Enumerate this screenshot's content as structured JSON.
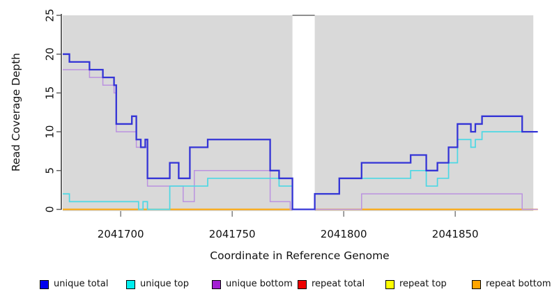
{
  "chart_data": {
    "type": "line",
    "subtype": "step-post",
    "title": "",
    "xlabel": "Coordinate in Reference Genome",
    "ylabel": "Read Coverage Depth",
    "xlim": [
      2041674,
      2041887
    ],
    "ylim": [
      0,
      25
    ],
    "x_ticks": [
      2041700,
      2041750,
      2041800,
      2041850
    ],
    "y_ticks": [
      0,
      5,
      10,
      15,
      20,
      25
    ],
    "grid": false,
    "plot_bg": "#ffffff",
    "shaded_regions": [
      {
        "from": 2041674,
        "to": 2041777,
        "color": "#d9d9d9"
      },
      {
        "from": 2041787,
        "to": 2041885,
        "color": "#d9d9d9"
      }
    ],
    "gap_region": {
      "from": 2041777,
      "to": 2041787,
      "top_line_color": "#8f8f8f"
    },
    "series": [
      {
        "name": "repeat top",
        "color": "#ffff00",
        "width": 1.5,
        "points": [
          [
            2041674,
            0
          ]
        ]
      },
      {
        "name": "repeat total",
        "color": "#dd2222",
        "width": 1.5,
        "points": [
          [
            2041674,
            0
          ]
        ]
      },
      {
        "name": "repeat bottom",
        "color": "#ffa500",
        "width": 2,
        "points": [
          [
            2041674,
            0
          ]
        ]
      },
      {
        "name": "unique bottom",
        "color": "#bb92e0",
        "width": 1.5,
        "points": [
          [
            2041674,
            18
          ],
          [
            2041686,
            17
          ],
          [
            2041692,
            16
          ],
          [
            2041697,
            15
          ],
          [
            2041698,
            10
          ],
          [
            2041707,
            8
          ],
          [
            2041712,
            3
          ],
          [
            2041728,
            1
          ],
          [
            2041733,
            5
          ],
          [
            2041767,
            1
          ],
          [
            2041776,
            0
          ],
          [
            2041808,
            2
          ],
          [
            2041880,
            0
          ]
        ]
      },
      {
        "name": "unique top",
        "color": "#4cd8e4",
        "width": 1.7,
        "points": [
          [
            2041674,
            2
          ],
          [
            2041677,
            1
          ],
          [
            2041708,
            0
          ],
          [
            2041710,
            1
          ],
          [
            2041712,
            0
          ],
          [
            2041722,
            3
          ],
          [
            2041739,
            4
          ],
          [
            2041771,
            3
          ],
          [
            2041777,
            0
          ],
          [
            2041787,
            2
          ],
          [
            2041798,
            4
          ],
          [
            2041830,
            5
          ],
          [
            2041837,
            3
          ],
          [
            2041842,
            4
          ],
          [
            2041847,
            6
          ],
          [
            2041851,
            9
          ],
          [
            2041857,
            8
          ],
          [
            2041859,
            9
          ],
          [
            2041862,
            10
          ]
        ]
      },
      {
        "name": "unique total",
        "color": "#3434d6",
        "width": 2.3,
        "points": [
          [
            2041674,
            20
          ],
          [
            2041677,
            19
          ],
          [
            2041686,
            18
          ],
          [
            2041692,
            17
          ],
          [
            2041697,
            16
          ],
          [
            2041698,
            11
          ],
          [
            2041705,
            12
          ],
          [
            2041707,
            9
          ],
          [
            2041709,
            8
          ],
          [
            2041711,
            9
          ],
          [
            2041712,
            4
          ],
          [
            2041722,
            6
          ],
          [
            2041726,
            4
          ],
          [
            2041731,
            8
          ],
          [
            2041739,
            9
          ],
          [
            2041767,
            5
          ],
          [
            2041771,
            4
          ],
          [
            2041777,
            0
          ],
          [
            2041787,
            2
          ],
          [
            2041798,
            4
          ],
          [
            2041808,
            6
          ],
          [
            2041830,
            7
          ],
          [
            2041837,
            5
          ],
          [
            2041842,
            6
          ],
          [
            2041847,
            8
          ],
          [
            2041851,
            11
          ],
          [
            2041857,
            10
          ],
          [
            2041859,
            11
          ],
          [
            2041862,
            12
          ],
          [
            2041880,
            10
          ]
        ]
      }
    ],
    "legend_position": "bottom"
  },
  "legend": {
    "items": [
      {
        "label": "unique total",
        "color": "#0000ee"
      },
      {
        "label": "unique top",
        "color": "#00eeee"
      },
      {
        "label": "unique bottom",
        "color": "#a31fd3"
      },
      {
        "label": "repeat total",
        "color": "#ee0000"
      },
      {
        "label": "repeat top",
        "color": "#ffff00"
      },
      {
        "label": "repeat bottom",
        "color": "#ffa500"
      }
    ]
  },
  "axes": {
    "x_tick_labels": [
      "2041700",
      "2041750",
      "2041800",
      "2041850"
    ],
    "y_tick_labels": [
      "0",
      "5",
      "10",
      "15",
      "20",
      "25"
    ],
    "xlabel": "Coordinate in Reference Genome",
    "ylabel": "Read Coverage Depth"
  }
}
